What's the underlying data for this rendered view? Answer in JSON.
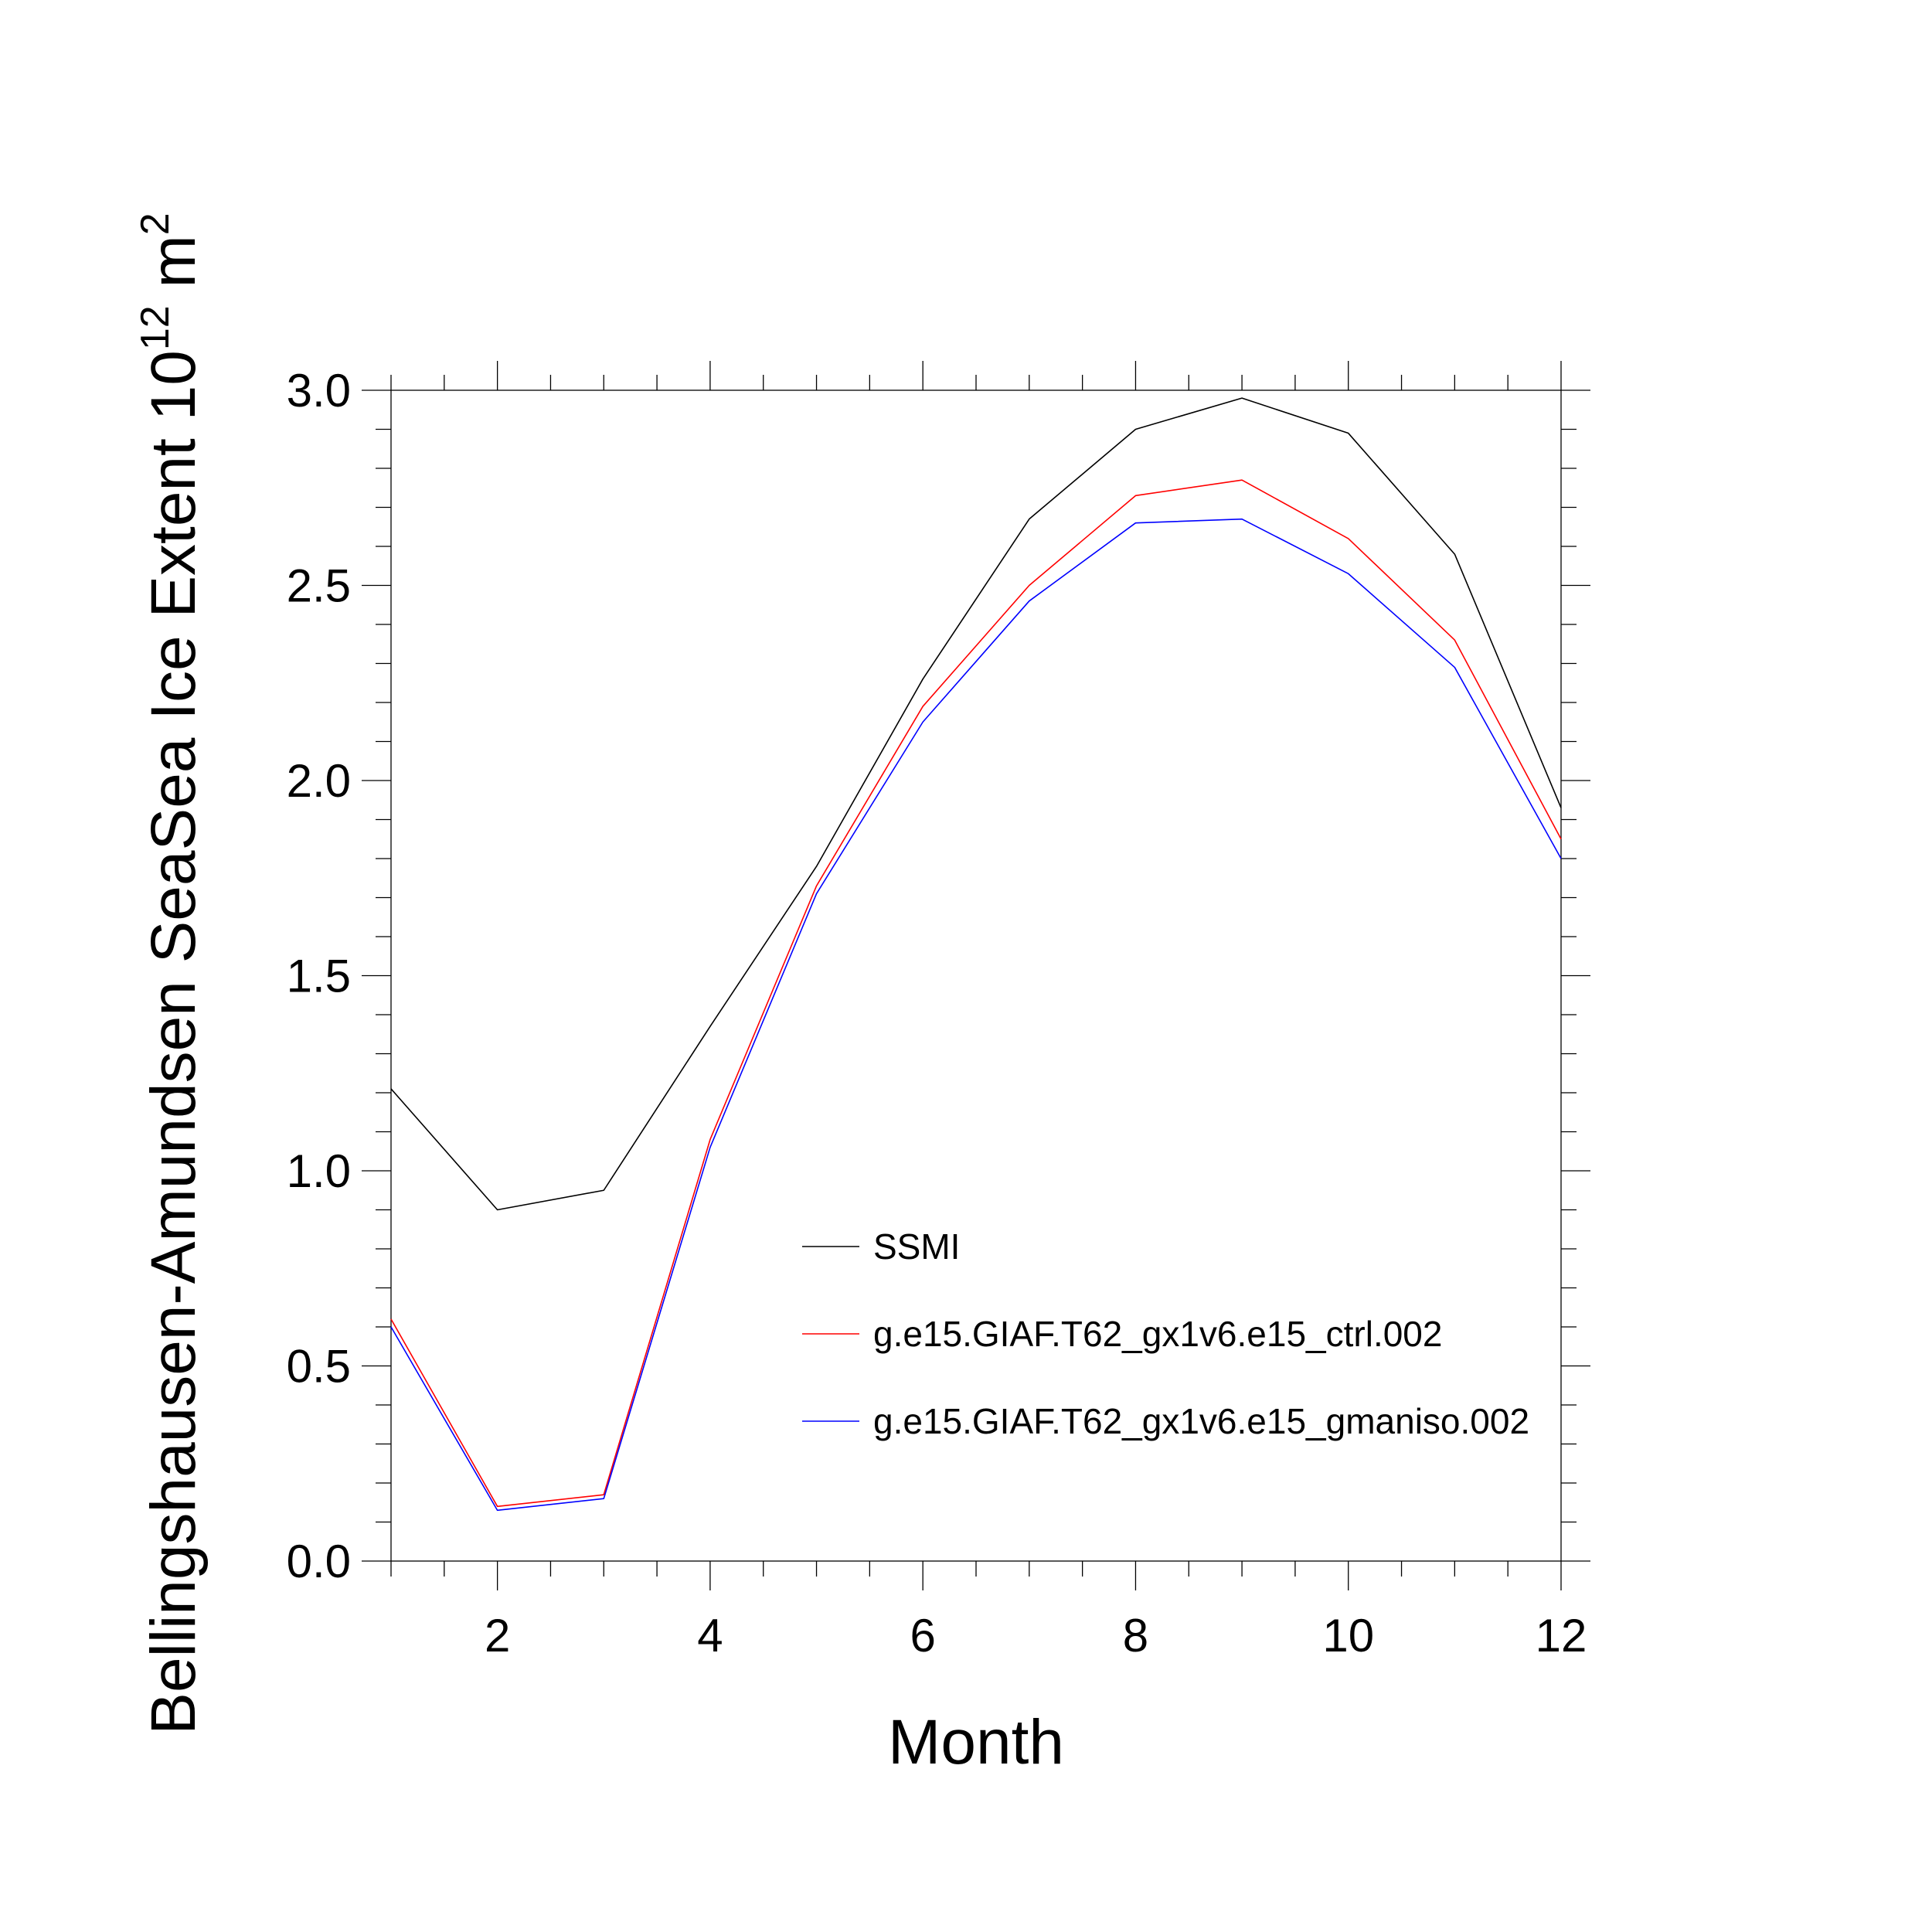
{
  "chart_data": {
    "type": "line",
    "title": "",
    "xlabel": "Month",
    "ylabel": {
      "main": "Bellingshausen-Amundsen SeaSea Ice Extent 10",
      "superscript_exp": "12",
      "unit": " m",
      "superscript_unit": "2"
    },
    "xlim": [
      1,
      12
    ],
    "ylim": [
      0.0,
      3.0
    ],
    "x_ticks": [
      "2",
      "4",
      "6",
      "8",
      "10",
      "12"
    ],
    "y_ticks": [
      "0.0",
      "0.5",
      "1.0",
      "1.5",
      "2.0",
      "2.5",
      "3.0"
    ],
    "grid": false,
    "legend_position": "center-right",
    "x": [
      1,
      2,
      3,
      4,
      5,
      6,
      7,
      8,
      9,
      10,
      11,
      12
    ],
    "series": [
      {
        "name": "SSMI",
        "color": "#000000",
        "values": [
          1.21,
          0.9,
          0.95,
          1.37,
          1.78,
          2.26,
          2.67,
          2.9,
          2.98,
          2.89,
          2.58,
          1.93
        ]
      },
      {
        "name": "g.e15.GIAF.T62_gx1v6.e15_ctrl.002",
        "color": "#ff0000",
        "values": [
          0.62,
          0.14,
          0.17,
          1.08,
          1.73,
          2.19,
          2.5,
          2.73,
          2.77,
          2.62,
          2.36,
          1.85
        ]
      },
      {
        "name": "g.e15.GIAF.T62_gx1v6.e15_gmaniso.002",
        "color": "#0000ff",
        "values": [
          0.6,
          0.13,
          0.16,
          1.06,
          1.71,
          2.15,
          2.46,
          2.66,
          2.67,
          2.53,
          2.29,
          1.8
        ]
      }
    ]
  }
}
